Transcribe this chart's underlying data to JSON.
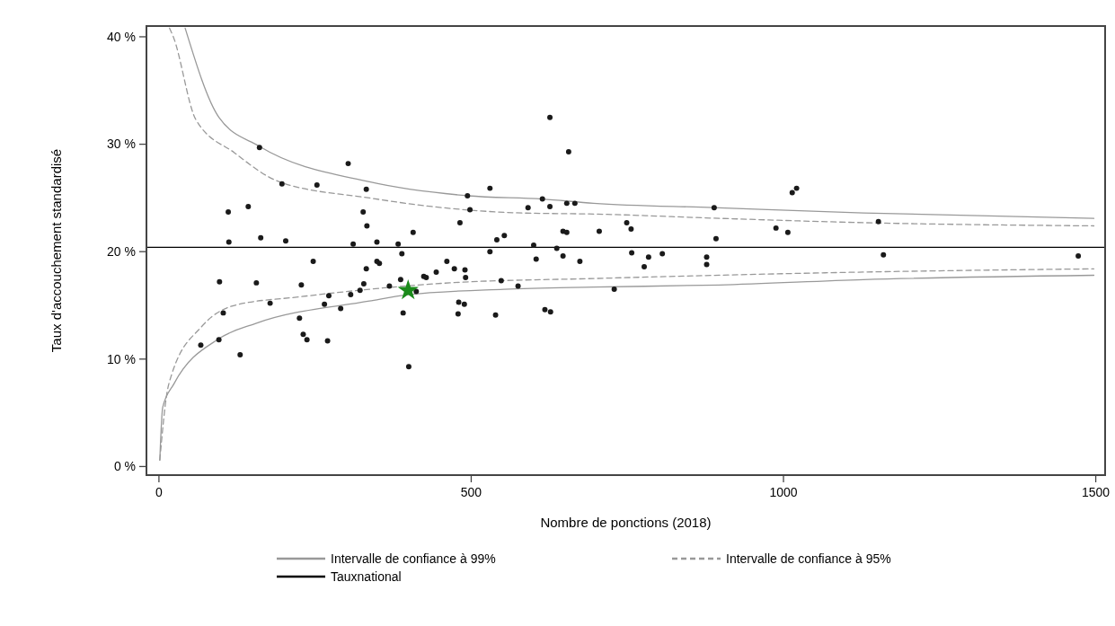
{
  "chart_data": {
    "type": "scatter",
    "xlabel": "Nombre de ponctions (2018)",
    "ylabel": "Taux d'accouchement standardisé",
    "xlim": [
      -20,
      1515
    ],
    "ylim": [
      -0.8,
      41
    ],
    "xticks": [
      0,
      500,
      1000,
      1500
    ],
    "yticks": [
      {
        "value": 0,
        "label": "0 %"
      },
      {
        "value": 10,
        "label": "10 %"
      },
      {
        "value": 20,
        "label": "20 %"
      },
      {
        "value": 30,
        "label": "30 %"
      },
      {
        "value": 40,
        "label": "40 %"
      }
    ],
    "legend": "bottom",
    "ref_lines": [
      {
        "axis": "y",
        "value": 20.4,
        "label": "Tauxnational",
        "color": "#000000",
        "line_style": "solid"
      }
    ],
    "series": [
      {
        "name": "Intervalle de confiance à 99%",
        "type": "line",
        "color": "#999999",
        "line_style": "solid",
        "x": [
          42,
          96,
          161,
          337,
          495,
          614,
          696,
          887,
          1128,
          1497
        ],
        "values": [
          40.8,
          32.5,
          29.8,
          26.5,
          25.2,
          24.9,
          24.5,
          24.1,
          23.6,
          23.1
        ]
      },
      {
        "type": "line",
        "color": "#999999",
        "line_style": "solid",
        "x": [
          1.4,
          6,
          24,
          96,
          154,
          337,
          399,
          552,
          696,
          897,
          1128,
          1497
        ],
        "values": [
          0.6,
          5.5,
          7.7,
          11.9,
          13.3,
          15.4,
          16.0,
          16.5,
          16.7,
          16.9,
          17.4,
          17.8
        ]
      },
      {
        "name": "Intervalle de confiance à 95%",
        "type": "line",
        "color": "#999999",
        "line_style": "dashed",
        "x": [
          17,
          23,
          59,
          121,
          193,
          337,
          437,
          581,
          696,
          897,
          1128,
          1497
        ],
        "values": [
          40.8,
          40,
          32.3,
          29.2,
          26.5,
          25.0,
          24.2,
          23.6,
          23.5,
          23.1,
          22.7,
          22.4
        ]
      },
      {
        "type": "line",
        "color": "#999999",
        "line_style": "dashed",
        "x": [
          1.4,
          13,
          20,
          68,
          121,
          226,
          337,
          466,
          696,
          1128,
          1497
        ],
        "values": [
          0.6,
          6.9,
          8.5,
          13.0,
          15.0,
          15.8,
          16.5,
          17.1,
          17.5,
          18.1,
          18.4
        ]
      },
      {
        "type": "scatter",
        "color": "#1a1a1a",
        "marker": "circle",
        "x": [
          161,
          303,
          197,
          253,
          332,
          111,
          143,
          327,
          333,
          112,
          163,
          203,
          311,
          247,
          332,
          97,
          156,
          228,
          328,
          322,
          307,
          272,
          265,
          291,
          178,
          103,
          225,
          231,
          237,
          270,
          96,
          67,
          130,
          626,
          656,
          530,
          494,
          614,
          591,
          626,
          653,
          666,
          498,
          482,
          407,
          349,
          383,
          541,
          553,
          647,
          653,
          600,
          637,
          530,
          389,
          647,
          604,
          674,
          461,
          349,
          353,
          473,
          490,
          444,
          424,
          428,
          491,
          387,
          369,
          548,
          575,
          412,
          480,
          489,
          391,
          479,
          539,
          618,
          627,
          400,
          1021,
          1014,
          889,
          749,
          756,
          705,
          988,
          1007,
          892,
          757,
          784,
          806,
          777,
          877,
          877,
          729,
          1152,
          1160,
          1472
        ],
        "values": [
          29.7,
          28.2,
          26.3,
          26.2,
          25.8,
          23.7,
          24.2,
          23.7,
          22.4,
          20.9,
          21.3,
          21.0,
          20.7,
          19.1,
          18.4,
          17.2,
          17.1,
          16.9,
          17.0,
          16.4,
          16.0,
          15.9,
          15.1,
          14.7,
          15.2,
          14.3,
          13.8,
          12.3,
          11.8,
          11.7,
          11.8,
          11.3,
          10.4,
          32.5,
          29.3,
          25.9,
          25.2,
          24.9,
          24.1,
          24.2,
          24.5,
          24.5,
          23.9,
          22.7,
          21.8,
          20.9,
          20.7,
          21.1,
          21.5,
          21.9,
          21.8,
          20.6,
          20.3,
          20.0,
          19.8,
          19.6,
          19.3,
          19.1,
          19.1,
          19.1,
          18.9,
          18.4,
          18.3,
          18.1,
          17.7,
          17.6,
          17.6,
          17.4,
          16.8,
          17.3,
          16.8,
          16.3,
          15.3,
          15.1,
          14.3,
          14.2,
          14.1,
          14.6,
          14.4,
          9.3,
          25.9,
          25.5,
          24.1,
          22.7,
          22.1,
          21.9,
          22.2,
          21.8,
          21.2,
          19.9,
          19.5,
          19.8,
          18.6,
          19.5,
          18.8,
          16.5,
          22.8,
          19.7,
          19.6
        ]
      },
      {
        "type": "scatter",
        "color": "#1a8a1a",
        "marker": "star",
        "x": [
          399
        ],
        "values": [
          16.4
        ]
      }
    ]
  }
}
